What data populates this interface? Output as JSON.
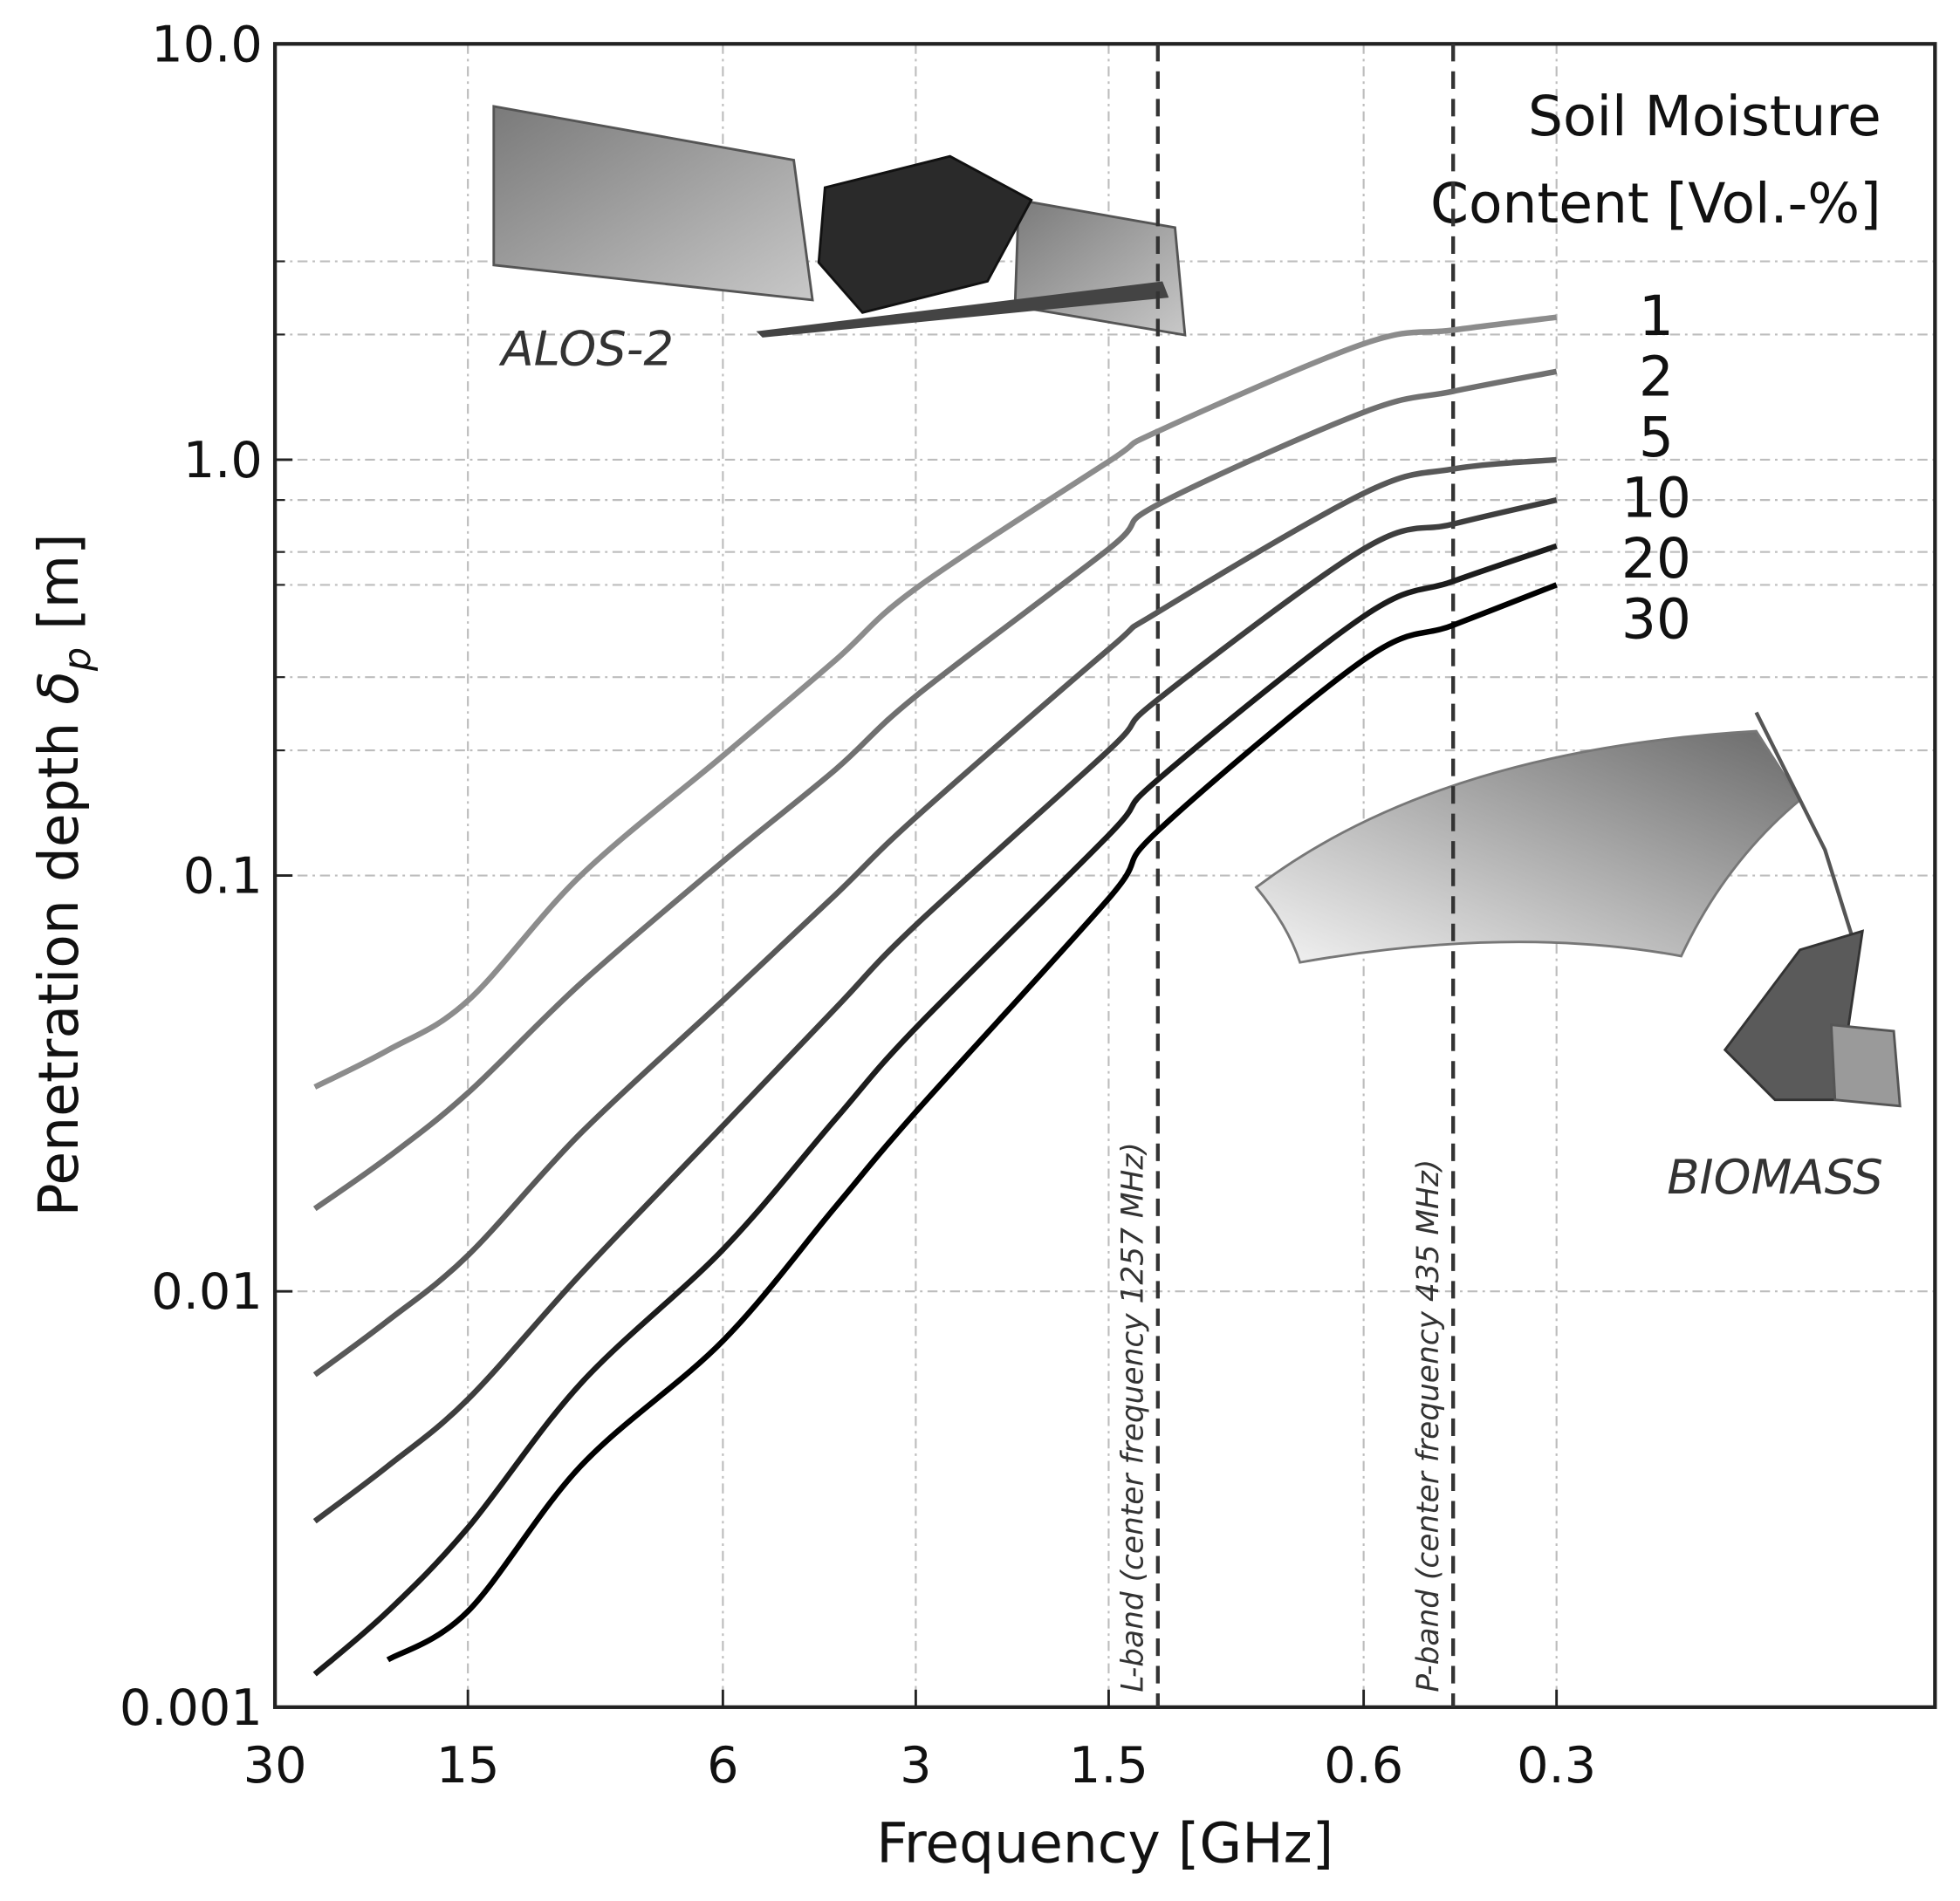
{
  "chart_data": {
    "type": "line",
    "xlabel": "Frequency [GHz]",
    "ylabel": {
      "text": "Penetration depth",
      "symbol": "δ",
      "subscript": "p",
      "unit": "[m]"
    },
    "x_log": true,
    "y_log": true,
    "grid": true,
    "xlim": [
      30,
      0.077
    ],
    "ylim": [
      0.001,
      10
    ],
    "xticks": [
      30,
      15,
      6,
      3,
      1.5,
      0.6,
      0.3
    ],
    "yticks": [
      {
        "value": 10,
        "label": "10.0"
      },
      {
        "value": 1,
        "label": "1.0"
      },
      0.1,
      0.01,
      0.001
    ],
    "y_minor_grid": [
      3,
      2,
      0.8,
      0.6,
      0.5,
      0.3,
      0.2
    ],
    "legend_title": [
      "Soil Moisture",
      "Content [Vol.-%]"
    ],
    "x": [
      26,
      20,
      15,
      10,
      6,
      4,
      3,
      1.5,
      1.257,
      0.6,
      0.435,
      0.3
    ],
    "series": [
      {
        "name": "1",
        "color": "#8c8c8c",
        "values": [
          0.031,
          0.038,
          0.05,
          0.1,
          0.194,
          0.33,
          0.49,
          0.99,
          1.17,
          1.9,
          2.05,
          2.2
        ]
      },
      {
        "name": "2",
        "color": "#707070",
        "values": [
          0.0158,
          0.021,
          0.03,
          0.055,
          0.108,
          0.18,
          0.27,
          0.61,
          0.78,
          1.3,
          1.46,
          1.63
        ]
      },
      {
        "name": "5",
        "color": "#585858",
        "values": [
          0.0063,
          0.0085,
          0.0122,
          0.024,
          0.05,
          0.09,
          0.138,
          0.35,
          0.43,
          0.83,
          0.95,
          1.0
        ]
      },
      {
        "name": "10",
        "color": "#3e3e3e",
        "values": [
          0.0028,
          0.0038,
          0.0055,
          0.011,
          0.025,
          0.048,
          0.076,
          0.2,
          0.265,
          0.61,
          0.7,
          0.8
        ]
      },
      {
        "name": "20",
        "color": "#1c1c1c",
        "values": [
          0.0012,
          0.0017,
          0.0027,
          0.006,
          0.0126,
          0.026,
          0.043,
          0.125,
          0.17,
          0.42,
          0.51,
          0.62
        ]
      },
      {
        "name": "30",
        "color": "#000000",
        "values": [
          null,
          0.0013,
          0.0017,
          0.0038,
          0.0076,
          0.016,
          0.027,
          0.088,
          0.128,
          0.33,
          0.4,
          0.5
        ]
      }
    ],
    "vlines": [
      {
        "x": 1.257,
        "label": "L-band (center frequency 1257 MHz)"
      },
      {
        "x": 0.435,
        "label": "P-band (center frequency 435 MHz)"
      }
    ],
    "annotations": [
      "ALOS-2",
      "BIOMASS"
    ]
  }
}
